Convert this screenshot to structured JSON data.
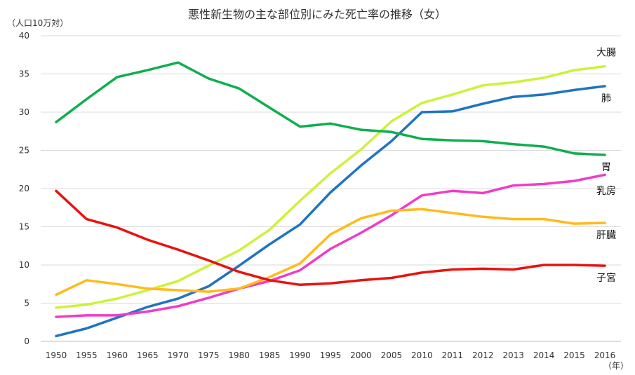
{
  "chart_data": {
    "type": "line",
    "title": "悪性新生物の主な部位別にみた死亡率の推移（女）",
    "ylabel": "（人口10万対）",
    "xlabel": "（年）",
    "ylim": [
      0,
      40
    ],
    "yticks": [
      0,
      5,
      10,
      15,
      20,
      25,
      30,
      35,
      40
    ],
    "grid": true,
    "legend": "inline-right",
    "categories": [
      "1950",
      "1955",
      "1960",
      "1965",
      "1970",
      "1975",
      "1980",
      "1985",
      "1990",
      "1995",
      "2000",
      "2005",
      "2010",
      "2011",
      "2012",
      "2013",
      "2014",
      "2015",
      "2016"
    ],
    "series": [
      {
        "name": "大腸",
        "color": "#ccf23a",
        "values": [
          4.4,
          4.8,
          5.6,
          6.7,
          7.9,
          9.9,
          11.9,
          14.6,
          18.4,
          22.0,
          25.1,
          28.8,
          31.2,
          32.3,
          33.5,
          33.9,
          34.5,
          35.5,
          36.0
        ]
      },
      {
        "name": "肺",
        "color": "#1f74c2",
        "values": [
          0.7,
          1.7,
          3.1,
          4.5,
          5.6,
          7.2,
          9.9,
          12.7,
          15.3,
          19.5,
          23.0,
          26.2,
          30.0,
          30.1,
          31.1,
          32.0,
          32.3,
          32.9,
          33.4
        ]
      },
      {
        "name": "胃",
        "color": "#0fae4f",
        "values": [
          28.7,
          31.7,
          34.6,
          35.5,
          36.5,
          34.4,
          33.1,
          30.6,
          28.1,
          28.5,
          27.7,
          27.4,
          26.5,
          26.3,
          26.2,
          25.8,
          25.5,
          24.6,
          24.4
        ]
      },
      {
        "name": "乳房",
        "color": "#f03cc8",
        "values": [
          3.2,
          3.4,
          3.4,
          3.9,
          4.6,
          5.7,
          6.9,
          7.9,
          9.3,
          12.1,
          14.2,
          16.5,
          19.1,
          19.7,
          19.4,
          20.4,
          20.6,
          21.0,
          21.8
        ]
      },
      {
        "name": "肝臓",
        "color": "#ffbb1c",
        "values": [
          6.1,
          8.0,
          7.5,
          6.9,
          6.7,
          6.5,
          6.9,
          8.4,
          10.2,
          14.0,
          16.1,
          17.1,
          17.3,
          16.8,
          16.3,
          16.0,
          16.0,
          15.4,
          15.5
        ]
      },
      {
        "name": "子宮",
        "color": "#e8120e",
        "values": [
          19.7,
          16.0,
          14.9,
          13.3,
          12.0,
          10.6,
          9.1,
          8.0,
          7.4,
          7.6,
          8.0,
          8.3,
          9.0,
          9.4,
          9.5,
          9.4,
          10.0,
          10.0,
          9.9
        ]
      }
    ]
  }
}
